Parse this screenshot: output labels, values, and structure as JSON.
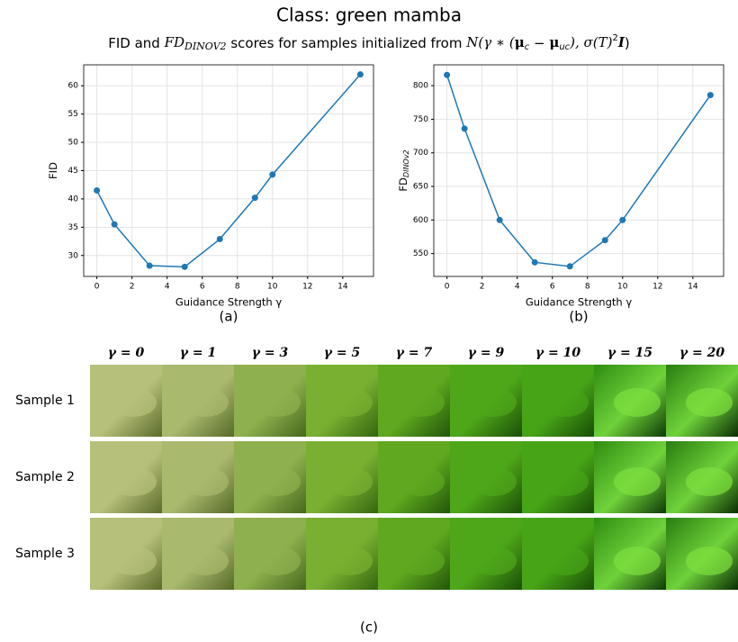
{
  "title": "Class: green mamba",
  "subtitle": [
    "FID and ",
    "FD",
    "DINOV2",
    " scores for samples initialized from ",
    "N(γ ∗ (",
    "μ",
    "c",
    " − ",
    "μ",
    "uc",
    "), σ(T)",
    "2",
    "I",
    ")"
  ],
  "chart_data": [
    {
      "type": "line",
      "x": [
        0,
        1,
        3,
        5,
        7,
        9,
        10,
        15
      ],
      "values": [
        41.5,
        35.5,
        28.2,
        28.0,
        32.9,
        40.2,
        44.3,
        62.0
      ],
      "color": "#1f77b4",
      "xlabel": "Guidance Strength γ",
      "ylabel": "FID",
      "caption": "(a)",
      "xlim": [
        -0.75,
        15.75
      ],
      "ylim": [
        26.3,
        63.7
      ],
      "xticks": [
        0,
        2,
        4,
        6,
        8,
        10,
        12,
        14
      ],
      "yticks": [
        30,
        35,
        40,
        45,
        50,
        55,
        60
      ],
      "grid": true
    },
    {
      "type": "line",
      "x": [
        0,
        1,
        3,
        5,
        7,
        9,
        10,
        15
      ],
      "values": [
        816,
        736,
        600,
        537,
        531,
        570,
        600,
        786
      ],
      "color": "#1f77b4",
      "xlabel": "Guidance Strength γ",
      "ylabel": "FD",
      "ylabel_sub": "DINOv2",
      "caption": "(b)",
      "xlim": [
        -0.75,
        15.75
      ],
      "ylim": [
        516,
        831
      ],
      "xticks": [
        0,
        2,
        4,
        6,
        8,
        10,
        12,
        14
      ],
      "yticks": [
        550,
        600,
        650,
        700,
        750,
        800
      ],
      "grid": true
    }
  ],
  "image_grid": {
    "columns": [
      "γ = 0",
      "γ = 1",
      "γ = 3",
      "γ = 5",
      "γ = 7",
      "γ = 9",
      "γ = 10",
      "γ = 15",
      "γ = 20"
    ],
    "rows": [
      "Sample 1",
      "Sample 2",
      "Sample 3"
    ],
    "caption": "(c)"
  }
}
